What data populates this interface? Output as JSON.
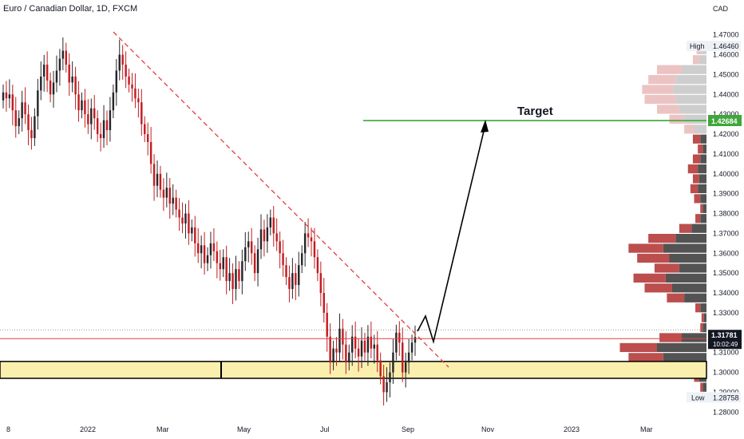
{
  "chart_data": {
    "type": "candlestick",
    "title": "Euro / Canadian Dollar, 1D, FXCM",
    "currency_label": "CAD",
    "y_ticks": [
      1.47,
      1.46,
      1.45,
      1.44,
      1.43,
      1.42,
      1.41,
      1.4,
      1.39,
      1.38,
      1.37,
      1.36,
      1.35,
      1.34,
      1.33,
      1.31,
      1.3,
      1.29,
      1.28
    ],
    "ylim": [
      1.2785,
      1.4775
    ],
    "x_labels": [
      "8",
      "2022",
      "Mar",
      "May",
      "Jul",
      "Sep",
      "Nov",
      "2023",
      "Mar"
    ],
    "high_label": "High",
    "high_value": "1.46460",
    "low_label": "Low",
    "low_value": "1.28758",
    "current_price": "1.31781",
    "countdown": "10:02:49",
    "target_label": "Target",
    "target_value": "1.42684",
    "support_zone": [
      1.297,
      1.3055
    ],
    "candles_note": "Approximate daily candles, Dec 2021 - Sep 2022",
    "series": {
      "close": [
        1.441,
        1.438,
        1.44,
        1.432,
        1.424,
        1.428,
        1.436,
        1.43,
        1.422,
        1.418,
        1.429,
        1.442,
        1.449,
        1.455,
        1.447,
        1.44,
        1.446,
        1.452,
        1.458,
        1.462,
        1.455,
        1.446,
        1.449,
        1.44,
        1.432,
        1.437,
        1.43,
        1.425,
        1.433,
        1.428,
        1.42,
        1.418,
        1.427,
        1.422,
        1.432,
        1.441,
        1.452,
        1.46,
        1.455,
        1.449,
        1.445,
        1.443,
        1.438,
        1.436,
        1.425,
        1.42,
        1.416,
        1.405,
        1.394,
        1.4,
        1.392,
        1.388,
        1.393,
        1.385,
        1.388,
        1.382,
        1.378,
        1.375,
        1.38,
        1.37,
        1.373,
        1.365,
        1.36,
        1.364,
        1.355,
        1.359,
        1.365,
        1.361,
        1.355,
        1.352,
        1.358,
        1.346,
        1.35,
        1.342,
        1.352,
        1.346,
        1.356,
        1.363,
        1.366,
        1.36,
        1.35,
        1.362,
        1.372,
        1.366,
        1.373,
        1.378,
        1.37,
        1.366,
        1.36,
        1.354,
        1.348,
        1.342,
        1.35,
        1.344,
        1.354,
        1.36,
        1.37,
        1.368,
        1.366,
        1.358,
        1.35,
        1.34,
        1.33,
        1.318,
        1.305,
        1.312,
        1.31,
        1.322,
        1.314,
        1.305,
        1.31,
        1.318,
        1.312,
        1.308,
        1.316,
        1.31,
        1.318,
        1.312,
        1.314,
        1.306,
        1.298,
        1.29,
        1.295,
        1.3,
        1.31,
        1.32,
        1.315,
        1.3,
        1.305,
        1.31,
        1.315,
        1.3178
      ],
      "open": [
        1.437,
        1.441,
        1.438,
        1.44,
        1.432,
        1.424,
        1.428,
        1.436,
        1.43,
        1.422,
        1.418,
        1.429,
        1.442,
        1.449,
        1.455,
        1.447,
        1.44,
        1.446,
        1.452,
        1.458,
        1.462,
        1.455,
        1.446,
        1.449,
        1.44,
        1.432,
        1.437,
        1.43,
        1.425,
        1.433,
        1.428,
        1.42,
        1.418,
        1.427,
        1.422,
        1.432,
        1.441,
        1.452,
        1.46,
        1.455,
        1.449,
        1.445,
        1.443,
        1.438,
        1.436,
        1.425,
        1.42,
        1.416,
        1.405,
        1.394,
        1.4,
        1.392,
        1.388,
        1.393,
        1.385,
        1.388,
        1.382,
        1.378,
        1.375,
        1.38,
        1.37,
        1.373,
        1.365,
        1.36,
        1.364,
        1.355,
        1.359,
        1.365,
        1.361,
        1.355,
        1.352,
        1.358,
        1.346,
        1.35,
        1.342,
        1.352,
        1.346,
        1.356,
        1.363,
        1.366,
        1.36,
        1.35,
        1.362,
        1.372,
        1.366,
        1.373,
        1.378,
        1.37,
        1.366,
        1.36,
        1.354,
        1.348,
        1.342,
        1.35,
        1.344,
        1.354,
        1.36,
        1.37,
        1.368,
        1.366,
        1.358,
        1.35,
        1.34,
        1.33,
        1.318,
        1.305,
        1.312,
        1.31,
        1.322,
        1.314,
        1.305,
        1.31,
        1.318,
        1.312,
        1.308,
        1.316,
        1.31,
        1.318,
        1.312,
        1.314,
        1.306,
        1.298,
        1.29,
        1.295,
        1.3,
        1.31,
        1.32,
        1.315,
        1.3,
        1.305,
        1.31,
        1.315
      ]
    },
    "volume_profile": [
      {
        "price": 1.4625,
        "up": 0.04,
        "down": 0.04
      },
      {
        "price": 1.4575,
        "up": 0.06,
        "down": 0.05
      },
      {
        "price": 1.4525,
        "up": 0.2,
        "down": 0.2
      },
      {
        "price": 1.4475,
        "up": 0.25,
        "down": 0.22
      },
      {
        "price": 1.4425,
        "up": 0.27,
        "down": 0.25
      },
      {
        "price": 1.4375,
        "up": 0.25,
        "down": 0.25
      },
      {
        "price": 1.4325,
        "up": 0.22,
        "down": 0.18
      },
      {
        "price": 1.4275,
        "up": 0.18,
        "down": 0.12
      },
      {
        "price": 1.4225,
        "up": 0.1,
        "down": 0.08
      },
      {
        "price": 1.4175,
        "up": 0.05,
        "down": 0.06
      },
      {
        "price": 1.4125,
        "up": 0.03,
        "down": 0.04
      },
      {
        "price": 1.4075,
        "up": 0.05,
        "down": 0.06
      },
      {
        "price": 1.4025,
        "up": 0.07,
        "down": 0.08
      },
      {
        "price": 1.3975,
        "up": 0.06,
        "down": 0.05
      },
      {
        "price": 1.3925,
        "up": 0.07,
        "down": 0.06
      },
      {
        "price": 1.3875,
        "up": 0.05,
        "down": 0.05
      },
      {
        "price": 1.3825,
        "up": 0.03,
        "down": 0.02
      },
      {
        "price": 1.3775,
        "up": 0.05,
        "down": 0.04
      },
      {
        "price": 1.3725,
        "up": 0.12,
        "down": 0.1
      },
      {
        "price": 1.3675,
        "up": 0.25,
        "down": 0.22
      },
      {
        "price": 1.3625,
        "up": 0.35,
        "down": 0.28
      },
      {
        "price": 1.3575,
        "up": 0.3,
        "down": 0.26
      },
      {
        "price": 1.3525,
        "up": 0.22,
        "down": 0.2
      },
      {
        "price": 1.3475,
        "up": 0.33,
        "down": 0.26
      },
      {
        "price": 1.3425,
        "up": 0.28,
        "down": 0.22
      },
      {
        "price": 1.3375,
        "up": 0.18,
        "down": 0.14
      },
      {
        "price": 1.3325,
        "up": 0.05,
        "down": 0.04
      },
      {
        "price": 1.3275,
        "up": 0.02,
        "down": 0.02
      },
      {
        "price": 1.3225,
        "up": 0.03,
        "down": 0.02
      },
      {
        "price": 1.3175,
        "up": 0.2,
        "down": 0.18
      },
      {
        "price": 1.3125,
        "up": 0.4,
        "down": 0.3
      },
      {
        "price": 1.3075,
        "up": 0.35,
        "down": 0.28
      },
      {
        "price": 1.3025,
        "up": 0.22,
        "down": 0.2
      },
      {
        "price": 1.2975,
        "up": 0.06,
        "down": 0.04
      },
      {
        "price": 1.2925,
        "up": 0.03,
        "down": 0.02
      },
      {
        "price": 1.2875,
        "up": 0.01,
        "down": 0.01
      }
    ],
    "colors": {
      "up": "#26262b",
      "down": "#c21d22",
      "target_line": "#3fa63b",
      "trend_line": "#e04040",
      "support_fill": "#fbefae",
      "price_line": "#e04040",
      "vp_up_upper": "#bdbdbd",
      "vp_down_upper": "#e7b4b4",
      "vp_up_lower": "#4a4a4a",
      "vp_down_lower": "#b84545"
    }
  }
}
